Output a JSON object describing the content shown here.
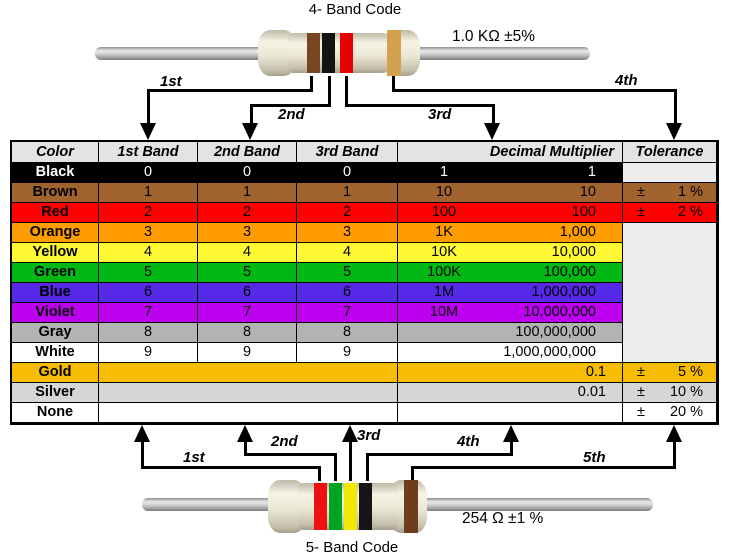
{
  "top_resistor": {
    "title": "4- Band Code",
    "value": "1.0 KΩ ±5%",
    "bands": [
      {
        "name": "brown",
        "color": "#7a4522"
      },
      {
        "name": "black",
        "color": "#131313"
      },
      {
        "name": "red",
        "color": "#e60000"
      },
      {
        "name": "gold",
        "color": "#d2a251"
      }
    ]
  },
  "bottom_resistor": {
    "title": "5- Band Code",
    "value": "254 Ω ±1 %",
    "bands": [
      {
        "name": "red",
        "color": "#ee1111"
      },
      {
        "name": "green",
        "color": "#00a41e"
      },
      {
        "name": "yellow",
        "color": "#f0e800"
      },
      {
        "name": "black",
        "color": "#151515"
      },
      {
        "name": "brown",
        "color": "#6f3d1d"
      }
    ]
  },
  "arrows_top": {
    "labels": [
      "1st",
      "2nd",
      "3rd",
      "4th"
    ]
  },
  "arrows_bottom": {
    "labels": [
      "1st",
      "2nd",
      "3rd",
      "4th",
      "5th"
    ]
  },
  "table": {
    "headers": [
      "Color",
      "1st Band",
      "2nd Band",
      "3rd Band",
      "Decimal Multiplier",
      "Tolerance"
    ],
    "plus_minus": "±",
    "empty_tolerance_bg": "#ececec",
    "rows": [
      {
        "name": "Black",
        "bg": "#000000",
        "fg": "#ffffff",
        "bands": [
          "0",
          "0",
          "0"
        ],
        "mult_short": "1",
        "mult_full": "1",
        "tolerance": null
      },
      {
        "name": "Brown",
        "bg": "#a2642f",
        "bands": [
          "1",
          "1",
          "1"
        ],
        "mult_short": "10",
        "mult_full": "10",
        "tolerance": "1 %"
      },
      {
        "name": "Red",
        "bg": "#fe0000",
        "bands": [
          "2",
          "2",
          "2"
        ],
        "mult_short": "100",
        "mult_full": "100",
        "tolerance": "2 %"
      },
      {
        "name": "Orange",
        "bg": "#ff9c00",
        "bands": [
          "3",
          "3",
          "3"
        ],
        "mult_short": "1K",
        "mult_full": "1,000",
        "tolerance": null
      },
      {
        "name": "Yellow",
        "bg": "#fff833",
        "bands": [
          "4",
          "4",
          "4"
        ],
        "mult_short": "10K",
        "mult_full": "10,000",
        "tolerance": null
      },
      {
        "name": "Green",
        "bg": "#00b813",
        "bands": [
          "5",
          "5",
          "5"
        ],
        "mult_short": "100K",
        "mult_full": "100,000",
        "tolerance": null
      },
      {
        "name": "Blue",
        "bg": "#5629e8",
        "bands": [
          "6",
          "6",
          "6"
        ],
        "mult_short": "1M",
        "mult_full": "1,000,000",
        "tolerance": null
      },
      {
        "name": "Violet",
        "bg": "#bd00f0",
        "bands": [
          "7",
          "7",
          "7"
        ],
        "mult_short": "10M",
        "mult_full": "10,000,000",
        "tolerance": null
      },
      {
        "name": "Gray",
        "bg": "#b3b3b3",
        "bands": [
          "8",
          "8",
          "8"
        ],
        "mult_short": "",
        "mult_full": "100,000,000",
        "tolerance": null
      },
      {
        "name": "White",
        "bg": "#ffffff",
        "bands": [
          "9",
          "9",
          "9"
        ],
        "mult_short": "",
        "mult_full": "1,000,000,000",
        "tolerance": null
      },
      {
        "name": "Gold",
        "bg": "#f5bc02",
        "mult_short": "",
        "mult_full": "0.1",
        "tolerance": "5 %"
      },
      {
        "name": "Silver",
        "bg": "#d6d6d6",
        "mult_short": "",
        "mult_full": "0.01",
        "tolerance": "10 %"
      },
      {
        "name": "None",
        "bg": "#ffffff",
        "mult_short": "",
        "mult_full": "",
        "tolerance": "20 %"
      }
    ]
  }
}
